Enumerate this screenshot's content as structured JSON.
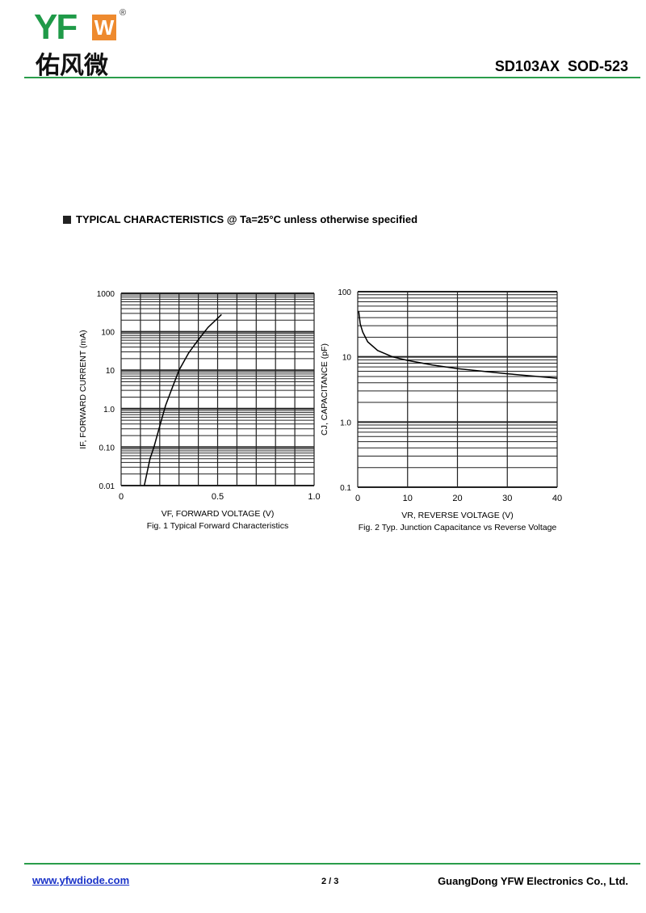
{
  "header": {
    "logo_text": "YFW",
    "logo_cn": "佑风微",
    "registered": "®",
    "part_number": "SD103AX  SOD-523"
  },
  "section_title": "TYPICAL CHARACTERISTICS @ Ta=25°C unless otherwise specified",
  "colors": {
    "accent_green": "#2a9d4a",
    "logo_orange": "#ee8a2e",
    "link": "#1a33c8"
  },
  "chart_data": [
    {
      "type": "line",
      "title": "Fig. 1  Typical Forward Characteristics",
      "xlabel": "VF, FORWARD VOLTAGE (V)",
      "ylabel": "IF, FORWARD CURRENT (mA)",
      "xlim": [
        0,
        1.0
      ],
      "ylim": [
        0.01,
        1000
      ],
      "yscale": "log",
      "grid": true,
      "xticks": [
        "0",
        "0.5",
        "1.0"
      ],
      "yticks": [
        "0.01",
        "0.10",
        "1.0",
        "10",
        "100",
        "1000"
      ],
      "x": [
        0.12,
        0.15,
        0.17,
        0.2,
        0.23,
        0.26,
        0.3,
        0.35,
        0.4,
        0.45,
        0.52
      ],
      "y": [
        0.01,
        0.05,
        0.1,
        0.35,
        1.2,
        3,
        10,
        28,
        62,
        130,
        280
      ]
    },
    {
      "type": "line",
      "title": "Fig. 2  Typ. Junction Capacitance vs Reverse Voltage",
      "xlabel": "VR, REVERSE VOLTAGE (V)",
      "ylabel": "CJ, CAPACITANCE (pF)",
      "xlim": [
        0,
        40
      ],
      "ylim": [
        0.1,
        100
      ],
      "yscale": "log",
      "grid": true,
      "xticks": [
        "0",
        "10",
        "20",
        "30",
        "40"
      ],
      "yticks": [
        "0.1",
        "1.0",
        "10",
        "100"
      ],
      "x": [
        0.2,
        0.5,
        1,
        2,
        4,
        7,
        10,
        15,
        20,
        30,
        40
      ],
      "y": [
        50,
        32,
        24,
        17,
        12.5,
        10,
        8.8,
        7.5,
        6.6,
        5.5,
        4.7
      ]
    }
  ],
  "footer": {
    "website": "www.yfwdiode.com",
    "page": "2 / 3",
    "company": "GuangDong YFW Electronics Co., Ltd."
  }
}
